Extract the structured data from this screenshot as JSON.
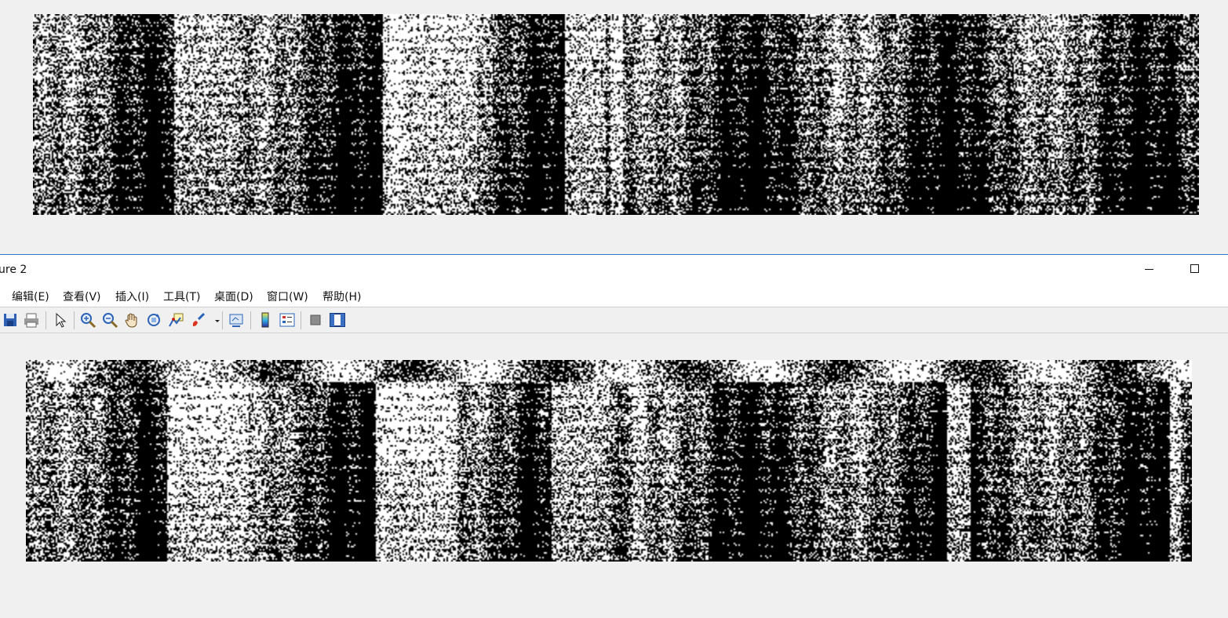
{
  "window": {
    "title": "ure 2",
    "minimize_icon": "minimize-icon",
    "maximize_icon": "maximize-icon"
  },
  "menu": [
    "编辑(E)",
    "查看(V)",
    "插入(I)",
    "工具(T)",
    "桌面(D)",
    "窗口(W)",
    "帮助(H)"
  ],
  "toolbar": {
    "icons": [
      "save-icon",
      "print-icon",
      "select-arrow-icon",
      "zoom-in-icon",
      "zoom-out-icon",
      "pan-hand-icon",
      "rotate-3d-icon",
      "data-cursor-icon",
      "brush-icon",
      "link-plot-icon",
      "colorbar-icon",
      "legend-icon",
      "hide-plot-tools-icon",
      "show-plot-tools-icon"
    ]
  },
  "images": {
    "background_figure": "binary black-and-white spectrogram image",
    "figure_2": "binary black-and-white spectrogram image"
  },
  "colors": {
    "window_bg": "#f0f0f0",
    "accent_border": "#2b79c9"
  }
}
